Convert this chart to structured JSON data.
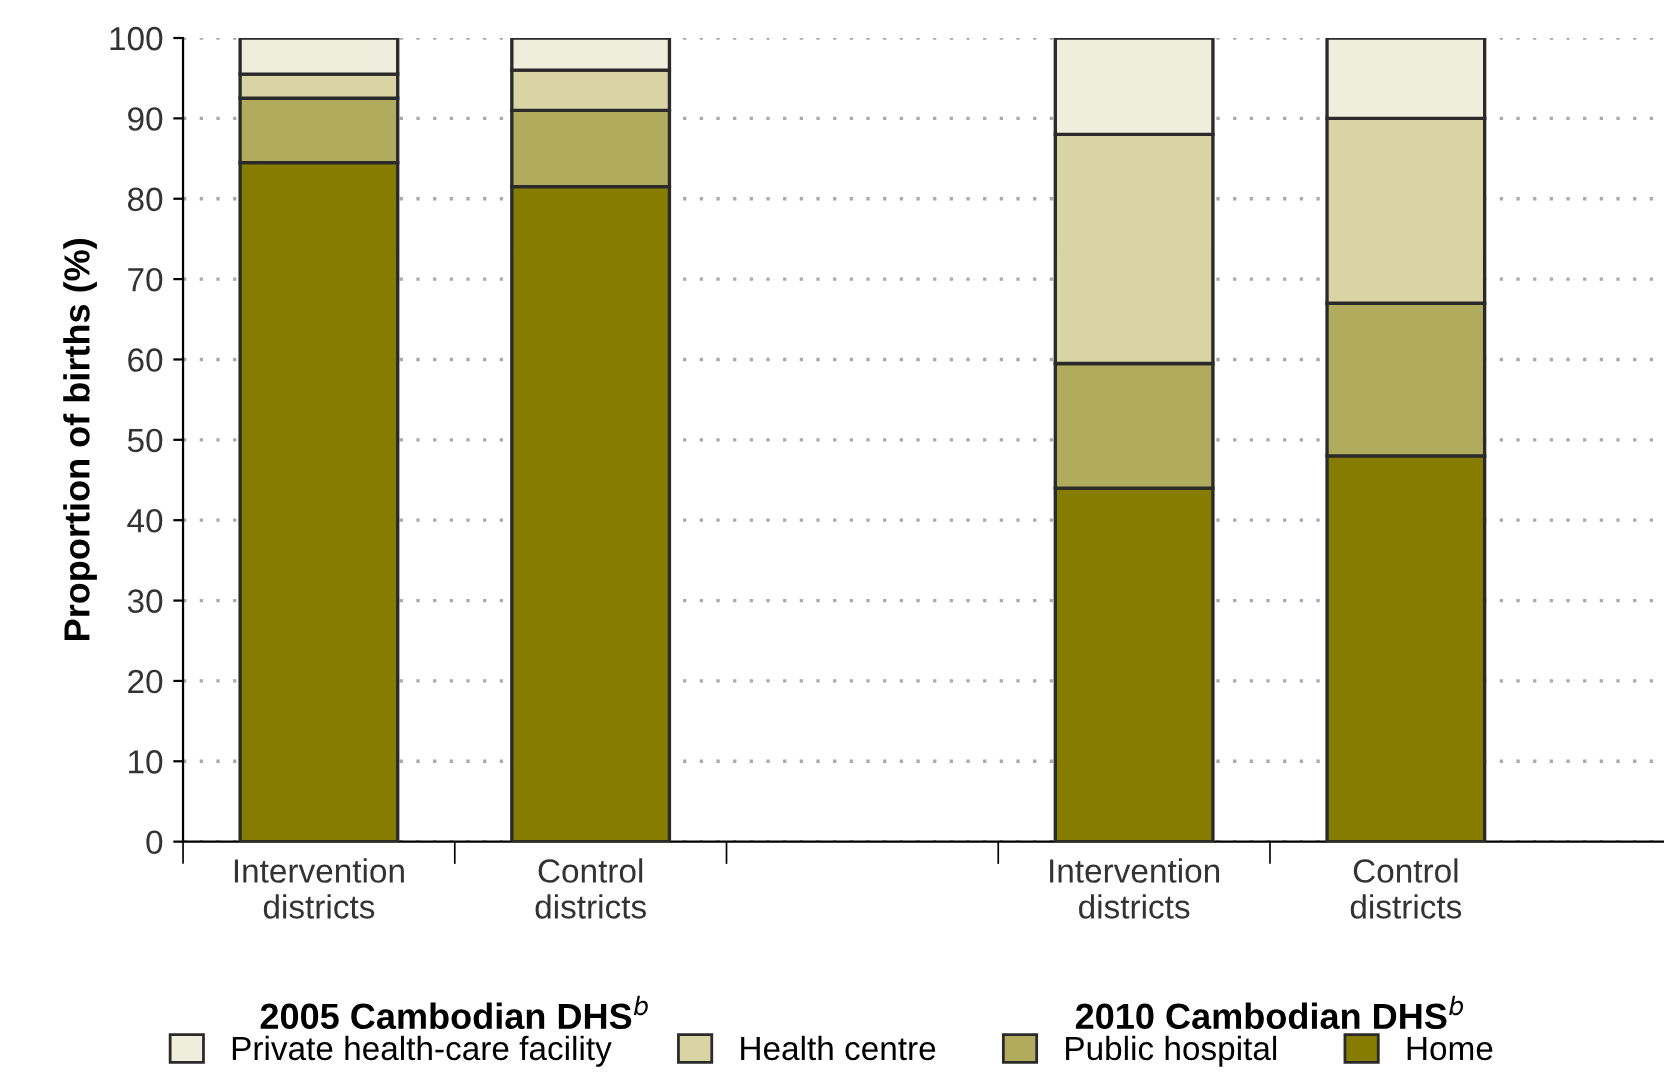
{
  "chart_data": {
    "type": "bar",
    "stacked": true,
    "ylabel": "Proportion of births (%)",
    "categories": [
      "Intervention\ndistricts",
      "Control\ndistricts",
      null,
      "Intervention\ndistricts",
      "Control\ndistricts"
    ],
    "series": [
      {
        "name": "Home",
        "color": "#857c00",
        "values": [
          84.5,
          81.5,
          null,
          44,
          48
        ]
      },
      {
        "name": "Public hospital",
        "color": "#b1ab5e",
        "values": [
          8,
          9.5,
          null,
          15.5,
          19
        ]
      },
      {
        "name": "Health centre",
        "color": "#d8d4a4",
        "values": [
          3,
          5,
          null,
          28.5,
          23
        ]
      },
      {
        "name": "Private health-care facility",
        "color": "#efeddc",
        "values": [
          4.5,
          4,
          null,
          12,
          10
        ]
      }
    ],
    "ylim": [
      0,
      100
    ],
    "yticks": [
      0,
      10,
      20,
      30,
      40,
      50,
      60,
      70,
      80,
      90,
      100
    ],
    "grid": "y",
    "legend": "bottom",
    "annotations": [
      "2005 Cambodian DHS$^{b}$",
      "2010 Cambodian DHS$^{b}$"
    ]
  }
}
